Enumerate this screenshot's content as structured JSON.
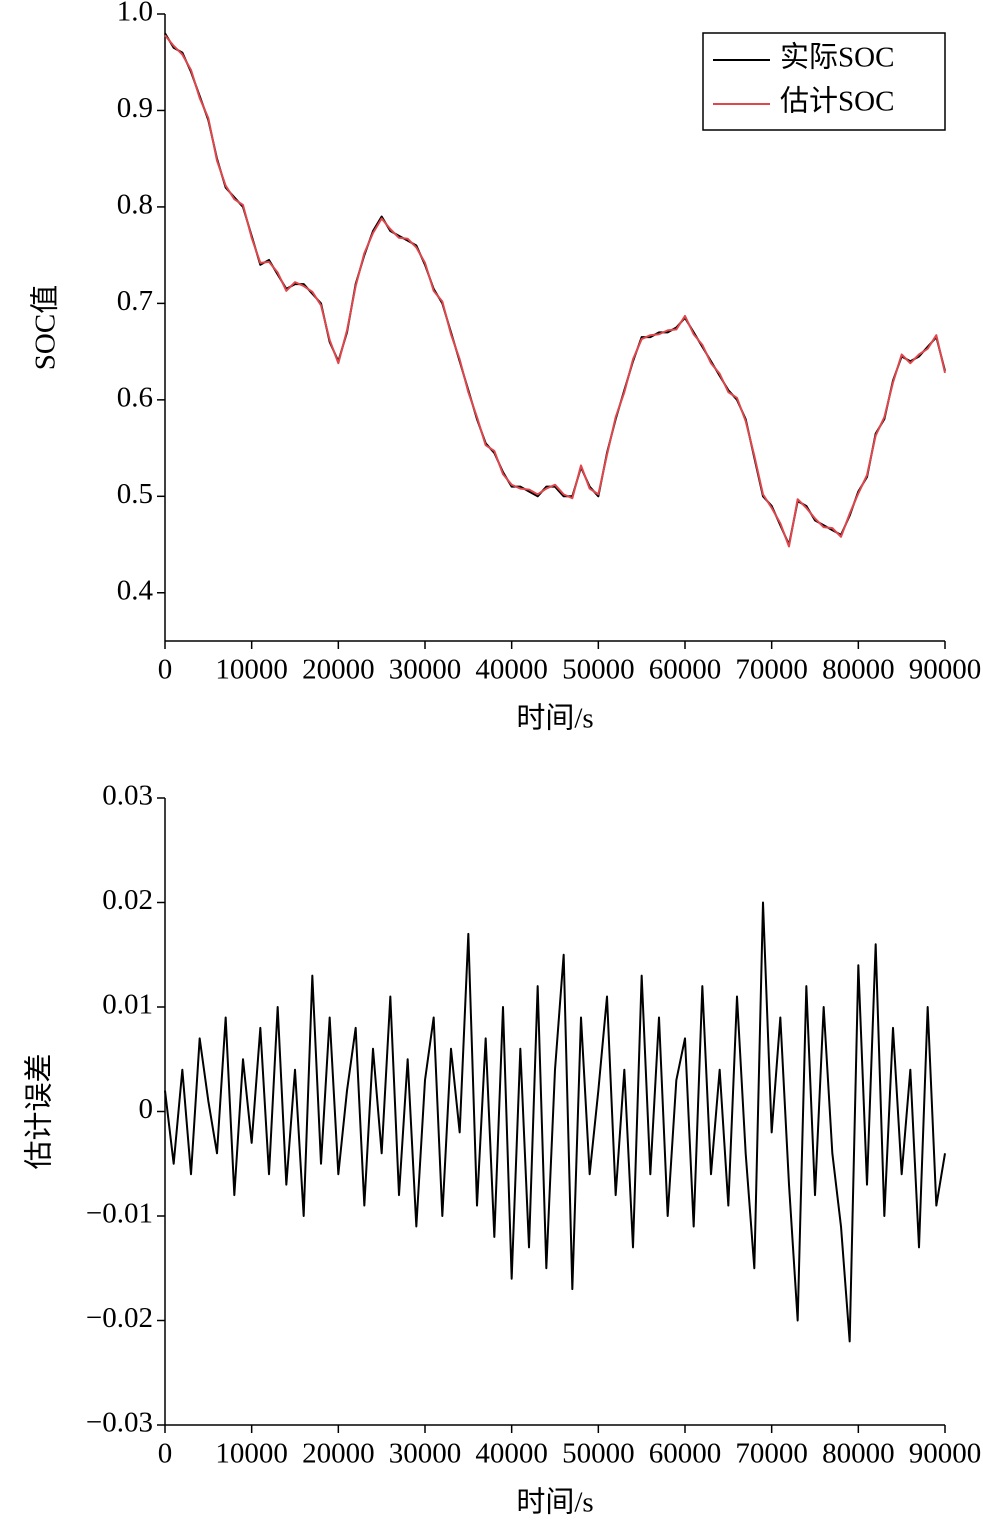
{
  "chart_data": [
    {
      "type": "line",
      "xlabel": "时间/s",
      "ylabel": "SOC值",
      "legend": "upper right",
      "xlim": [
        0,
        90000
      ],
      "xticks": [
        0,
        10000,
        20000,
        30000,
        40000,
        50000,
        60000,
        70000,
        80000,
        90000
      ],
      "ylim": [
        0.35,
        1.0
      ],
      "yticks": [
        0.4,
        0.5,
        0.6,
        0.7,
        0.8,
        0.9,
        {
          "value": 1.0,
          "label": "1.0"
        }
      ],
      "x": [
        0,
        1000,
        2000,
        3000,
        4000,
        5000,
        6000,
        7000,
        8000,
        9000,
        10000,
        11000,
        12000,
        13000,
        14000,
        15000,
        16000,
        17000,
        18000,
        19000,
        20000,
        21000,
        22000,
        23000,
        24000,
        25000,
        26000,
        27000,
        28000,
        29000,
        30000,
        31000,
        32000,
        33000,
        34000,
        35000,
        36000,
        37000,
        38000,
        39000,
        40000,
        41000,
        42000,
        43000,
        44000,
        45000,
        46000,
        47000,
        48000,
        49000,
        50000,
        51000,
        52000,
        53000,
        54000,
        55000,
        56000,
        57000,
        58000,
        59000,
        60000,
        61000,
        62000,
        63000,
        64000,
        65000,
        66000,
        67000,
        68000,
        69000,
        70000,
        71000,
        72000,
        73000,
        74000,
        75000,
        76000,
        77000,
        78000,
        79000,
        80000,
        81000,
        82000,
        83000,
        84000,
        85000,
        86000,
        87000,
        88000,
        89000,
        90000
      ],
      "series": [
        {
          "name": "实际SOC",
          "color": "#000000",
          "values": [
            0.98,
            0.965,
            0.96,
            0.94,
            0.915,
            0.89,
            0.85,
            0.82,
            0.81,
            0.8,
            0.77,
            0.74,
            0.745,
            0.73,
            0.715,
            0.72,
            0.72,
            0.71,
            0.7,
            0.66,
            0.64,
            0.67,
            0.72,
            0.75,
            0.775,
            0.79,
            0.775,
            0.77,
            0.765,
            0.76,
            0.74,
            0.715,
            0.7,
            0.67,
            0.64,
            0.61,
            0.58,
            0.555,
            0.545,
            0.525,
            0.51,
            0.51,
            0.505,
            0.5,
            0.51,
            0.51,
            0.5,
            0.5,
            0.53,
            0.51,
            0.5,
            0.545,
            0.58,
            0.61,
            0.64,
            0.665,
            0.665,
            0.67,
            0.67,
            0.675,
            0.685,
            0.67,
            0.655,
            0.64,
            0.625,
            0.61,
            0.6,
            0.58,
            0.54,
            0.5,
            0.49,
            0.47,
            0.45,
            0.495,
            0.49,
            0.475,
            0.47,
            0.465,
            0.46,
            0.48,
            0.505,
            0.52,
            0.565,
            0.58,
            0.62,
            0.645,
            0.64,
            0.645,
            0.655,
            0.665,
            0.63
          ]
        },
        {
          "name": "估计SOC",
          "color": "#e0474c",
          "values": [
            0.978,
            0.967,
            0.958,
            0.942,
            0.913,
            0.892,
            0.848,
            0.822,
            0.808,
            0.802,
            0.768,
            0.742,
            0.743,
            0.732,
            0.713,
            0.722,
            0.718,
            0.712,
            0.698,
            0.662,
            0.638,
            0.672,
            0.718,
            0.752,
            0.773,
            0.788,
            0.777,
            0.768,
            0.767,
            0.758,
            0.742,
            0.713,
            0.702,
            0.668,
            0.642,
            0.608,
            0.582,
            0.553,
            0.547,
            0.523,
            0.512,
            0.508,
            0.507,
            0.502,
            0.508,
            0.512,
            0.502,
            0.498,
            0.532,
            0.508,
            0.502,
            0.543,
            0.582,
            0.608,
            0.642,
            0.663,
            0.667,
            0.668,
            0.672,
            0.673,
            0.687,
            0.668,
            0.657,
            0.638,
            0.627,
            0.608,
            0.602,
            0.578,
            0.542,
            0.502,
            0.488,
            0.472,
            0.448,
            0.497,
            0.488,
            0.477,
            0.468,
            0.467,
            0.458,
            0.482,
            0.503,
            0.522,
            0.563,
            0.582,
            0.618,
            0.647,
            0.638,
            0.647,
            0.653,
            0.667,
            0.628
          ]
        }
      ]
    },
    {
      "type": "line",
      "xlabel": "时间/s",
      "ylabel": "估计误差",
      "color": "#000000",
      "xlim": [
        0,
        90000
      ],
      "xticks": [
        0,
        10000,
        20000,
        30000,
        40000,
        50000,
        60000,
        70000,
        80000,
        90000
      ],
      "ylim": [
        -0.03,
        0.03
      ],
      "yticks": [
        {
          "value": -0.03,
          "label": "−0.03"
        },
        {
          "value": -0.02,
          "label": "−0.02"
        },
        {
          "value": -0.01,
          "label": "−0.01"
        },
        0,
        0.01,
        0.02,
        0.03
      ],
      "x": [
        0,
        1000,
        2000,
        3000,
        4000,
        5000,
        6000,
        7000,
        8000,
        9000,
        10000,
        11000,
        12000,
        13000,
        14000,
        15000,
        16000,
        17000,
        18000,
        19000,
        20000,
        21000,
        22000,
        23000,
        24000,
        25000,
        26000,
        27000,
        28000,
        29000,
        30000,
        31000,
        32000,
        33000,
        34000,
        35000,
        36000,
        37000,
        38000,
        39000,
        40000,
        41000,
        42000,
        43000,
        44000,
        45000,
        46000,
        47000,
        48000,
        49000,
        50000,
        51000,
        52000,
        53000,
        54000,
        55000,
        56000,
        57000,
        58000,
        59000,
        60000,
        61000,
        62000,
        63000,
        64000,
        65000,
        66000,
        67000,
        68000,
        69000,
        70000,
        71000,
        72000,
        73000,
        74000,
        75000,
        76000,
        77000,
        78000,
        79000,
        80000,
        81000,
        82000,
        83000,
        84000,
        85000,
        86000,
        87000,
        88000,
        89000,
        90000
      ],
      "values": [
        0.002,
        -0.005,
        0.004,
        -0.006,
        0.007,
        0.001,
        -0.004,
        0.009,
        -0.008,
        0.005,
        -0.003,
        0.008,
        -0.006,
        0.01,
        -0.007,
        0.004,
        -0.01,
        0.013,
        -0.005,
        0.009,
        -0.006,
        0.002,
        0.008,
        -0.009,
        0.006,
        -0.004,
        0.011,
        -0.008,
        0.005,
        -0.011,
        0.003,
        0.009,
        -0.01,
        0.006,
        -0.002,
        0.017,
        -0.009,
        0.007,
        -0.012,
        0.01,
        -0.016,
        0.006,
        -0.013,
        0.012,
        -0.015,
        0.004,
        0.015,
        -0.017,
        0.009,
        -0.006,
        0.002,
        0.011,
        -0.008,
        0.004,
        -0.013,
        0.013,
        -0.006,
        0.009,
        -0.01,
        0.003,
        0.007,
        -0.011,
        0.012,
        -0.006,
        0.004,
        -0.009,
        0.011,
        -0.004,
        -0.015,
        0.02,
        -0.002,
        0.009,
        -0.007,
        -0.02,
        0.012,
        -0.008,
        0.01,
        -0.004,
        -0.011,
        -0.022,
        0.014,
        -0.007,
        0.016,
        -0.01,
        0.008,
        -0.006,
        0.004,
        -0.013,
        0.01,
        -0.009,
        -0.004
      ]
    }
  ]
}
